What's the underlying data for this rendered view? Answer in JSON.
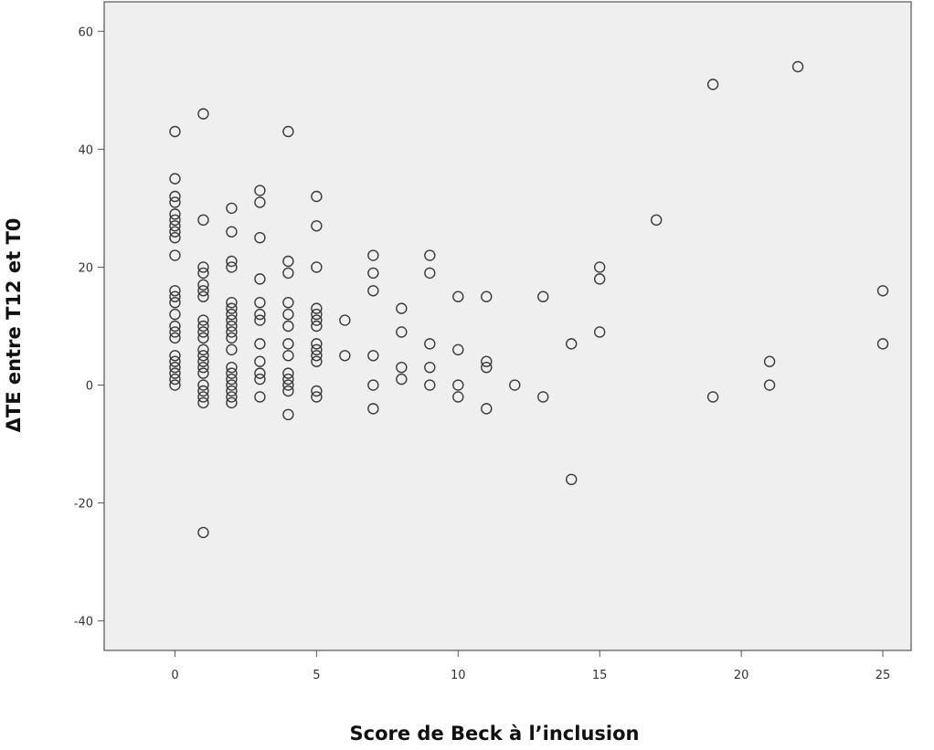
{
  "chart_data": {
    "type": "scatter",
    "title": "",
    "xlabel": "Score de Beck à l’inclusion",
    "ylabel": "ΔTE entre T12 et T0",
    "xlim": [
      -2.5,
      26
    ],
    "ylim": [
      -45,
      65
    ],
    "xticks": [
      "0",
      "5",
      "10",
      "15",
      "20",
      "25"
    ],
    "yticks": [
      "-40",
      "-20",
      "0",
      "20",
      "40",
      "60"
    ],
    "grid": false,
    "legend": "none",
    "colors": {
      "background": "#efefef",
      "marker_stroke": "#3a3a3a",
      "frame": "#555555"
    },
    "series": [
      {
        "points": [
          [
            0,
            43
          ],
          [
            0,
            35
          ],
          [
            0,
            32
          ],
          [
            0,
            31
          ],
          [
            0,
            29
          ],
          [
            0,
            28
          ],
          [
            0,
            27
          ],
          [
            0,
            26
          ],
          [
            0,
            25
          ],
          [
            0,
            22
          ],
          [
            0,
            16
          ],
          [
            0,
            15
          ],
          [
            0,
            14
          ],
          [
            0,
            12
          ],
          [
            0,
            10
          ],
          [
            0,
            9
          ],
          [
            0,
            8
          ],
          [
            0,
            5
          ],
          [
            0,
            4
          ],
          [
            0,
            3
          ],
          [
            0,
            2
          ],
          [
            0,
            1
          ],
          [
            0,
            0
          ],
          [
            1,
            46
          ],
          [
            1,
            28
          ],
          [
            1,
            20
          ],
          [
            1,
            19
          ],
          [
            1,
            17
          ],
          [
            1,
            16
          ],
          [
            1,
            15
          ],
          [
            1,
            11
          ],
          [
            1,
            10
          ],
          [
            1,
            9
          ],
          [
            1,
            8
          ],
          [
            1,
            6
          ],
          [
            1,
            5
          ],
          [
            1,
            4
          ],
          [
            1,
            3
          ],
          [
            1,
            2
          ],
          [
            1,
            0
          ],
          [
            1,
            -1
          ],
          [
            1,
            -2
          ],
          [
            1,
            -3
          ],
          [
            1,
            -25
          ],
          [
            2,
            30
          ],
          [
            2,
            26
          ],
          [
            2,
            21
          ],
          [
            2,
            20
          ],
          [
            2,
            14
          ],
          [
            2,
            13
          ],
          [
            2,
            12
          ],
          [
            2,
            11
          ],
          [
            2,
            10
          ],
          [
            2,
            9
          ],
          [
            2,
            8
          ],
          [
            2,
            6
          ],
          [
            2,
            3
          ],
          [
            2,
            2
          ],
          [
            2,
            1
          ],
          [
            2,
            0
          ],
          [
            2,
            -1
          ],
          [
            2,
            -2
          ],
          [
            2,
            -3
          ],
          [
            3,
            33
          ],
          [
            3,
            31
          ],
          [
            3,
            25
          ],
          [
            3,
            18
          ],
          [
            3,
            14
          ],
          [
            3,
            12
          ],
          [
            3,
            11
          ],
          [
            3,
            7
          ],
          [
            3,
            4
          ],
          [
            3,
            2
          ],
          [
            3,
            1
          ],
          [
            3,
            -2
          ],
          [
            4,
            43
          ],
          [
            4,
            21
          ],
          [
            4,
            19
          ],
          [
            4,
            14
          ],
          [
            4,
            12
          ],
          [
            4,
            10
          ],
          [
            4,
            7
          ],
          [
            4,
            5
          ],
          [
            4,
            2
          ],
          [
            4,
            1
          ],
          [
            4,
            0
          ],
          [
            4,
            -1
          ],
          [
            4,
            -5
          ],
          [
            5,
            32
          ],
          [
            5,
            27
          ],
          [
            5,
            20
          ],
          [
            5,
            13
          ],
          [
            5,
            12
          ],
          [
            5,
            11
          ],
          [
            5,
            10
          ],
          [
            5,
            7
          ],
          [
            5,
            6
          ],
          [
            5,
            5
          ],
          [
            5,
            4
          ],
          [
            5,
            -1
          ],
          [
            5,
            -2
          ],
          [
            6,
            11
          ],
          [
            6,
            5
          ],
          [
            7,
            22
          ],
          [
            7,
            19
          ],
          [
            7,
            16
          ],
          [
            7,
            5
          ],
          [
            7,
            0
          ],
          [
            7,
            -4
          ],
          [
            8,
            13
          ],
          [
            8,
            9
          ],
          [
            8,
            3
          ],
          [
            8,
            1
          ],
          [
            9,
            22
          ],
          [
            9,
            19
          ],
          [
            9,
            7
          ],
          [
            9,
            3
          ],
          [
            9,
            0
          ],
          [
            10,
            15
          ],
          [
            10,
            6
          ],
          [
            10,
            0
          ],
          [
            10,
            -2
          ],
          [
            11,
            15
          ],
          [
            11,
            4
          ],
          [
            11,
            3
          ],
          [
            11,
            -4
          ],
          [
            12,
            0
          ],
          [
            13,
            15
          ],
          [
            13,
            -2
          ],
          [
            14,
            7
          ],
          [
            14,
            -16
          ],
          [
            15,
            20
          ],
          [
            15,
            18
          ],
          [
            15,
            9
          ],
          [
            17,
            28
          ],
          [
            19,
            51
          ],
          [
            19,
            -2
          ],
          [
            21,
            4
          ],
          [
            21,
            0
          ],
          [
            22,
            54
          ],
          [
            25,
            16
          ],
          [
            25,
            7
          ]
        ]
      }
    ]
  }
}
